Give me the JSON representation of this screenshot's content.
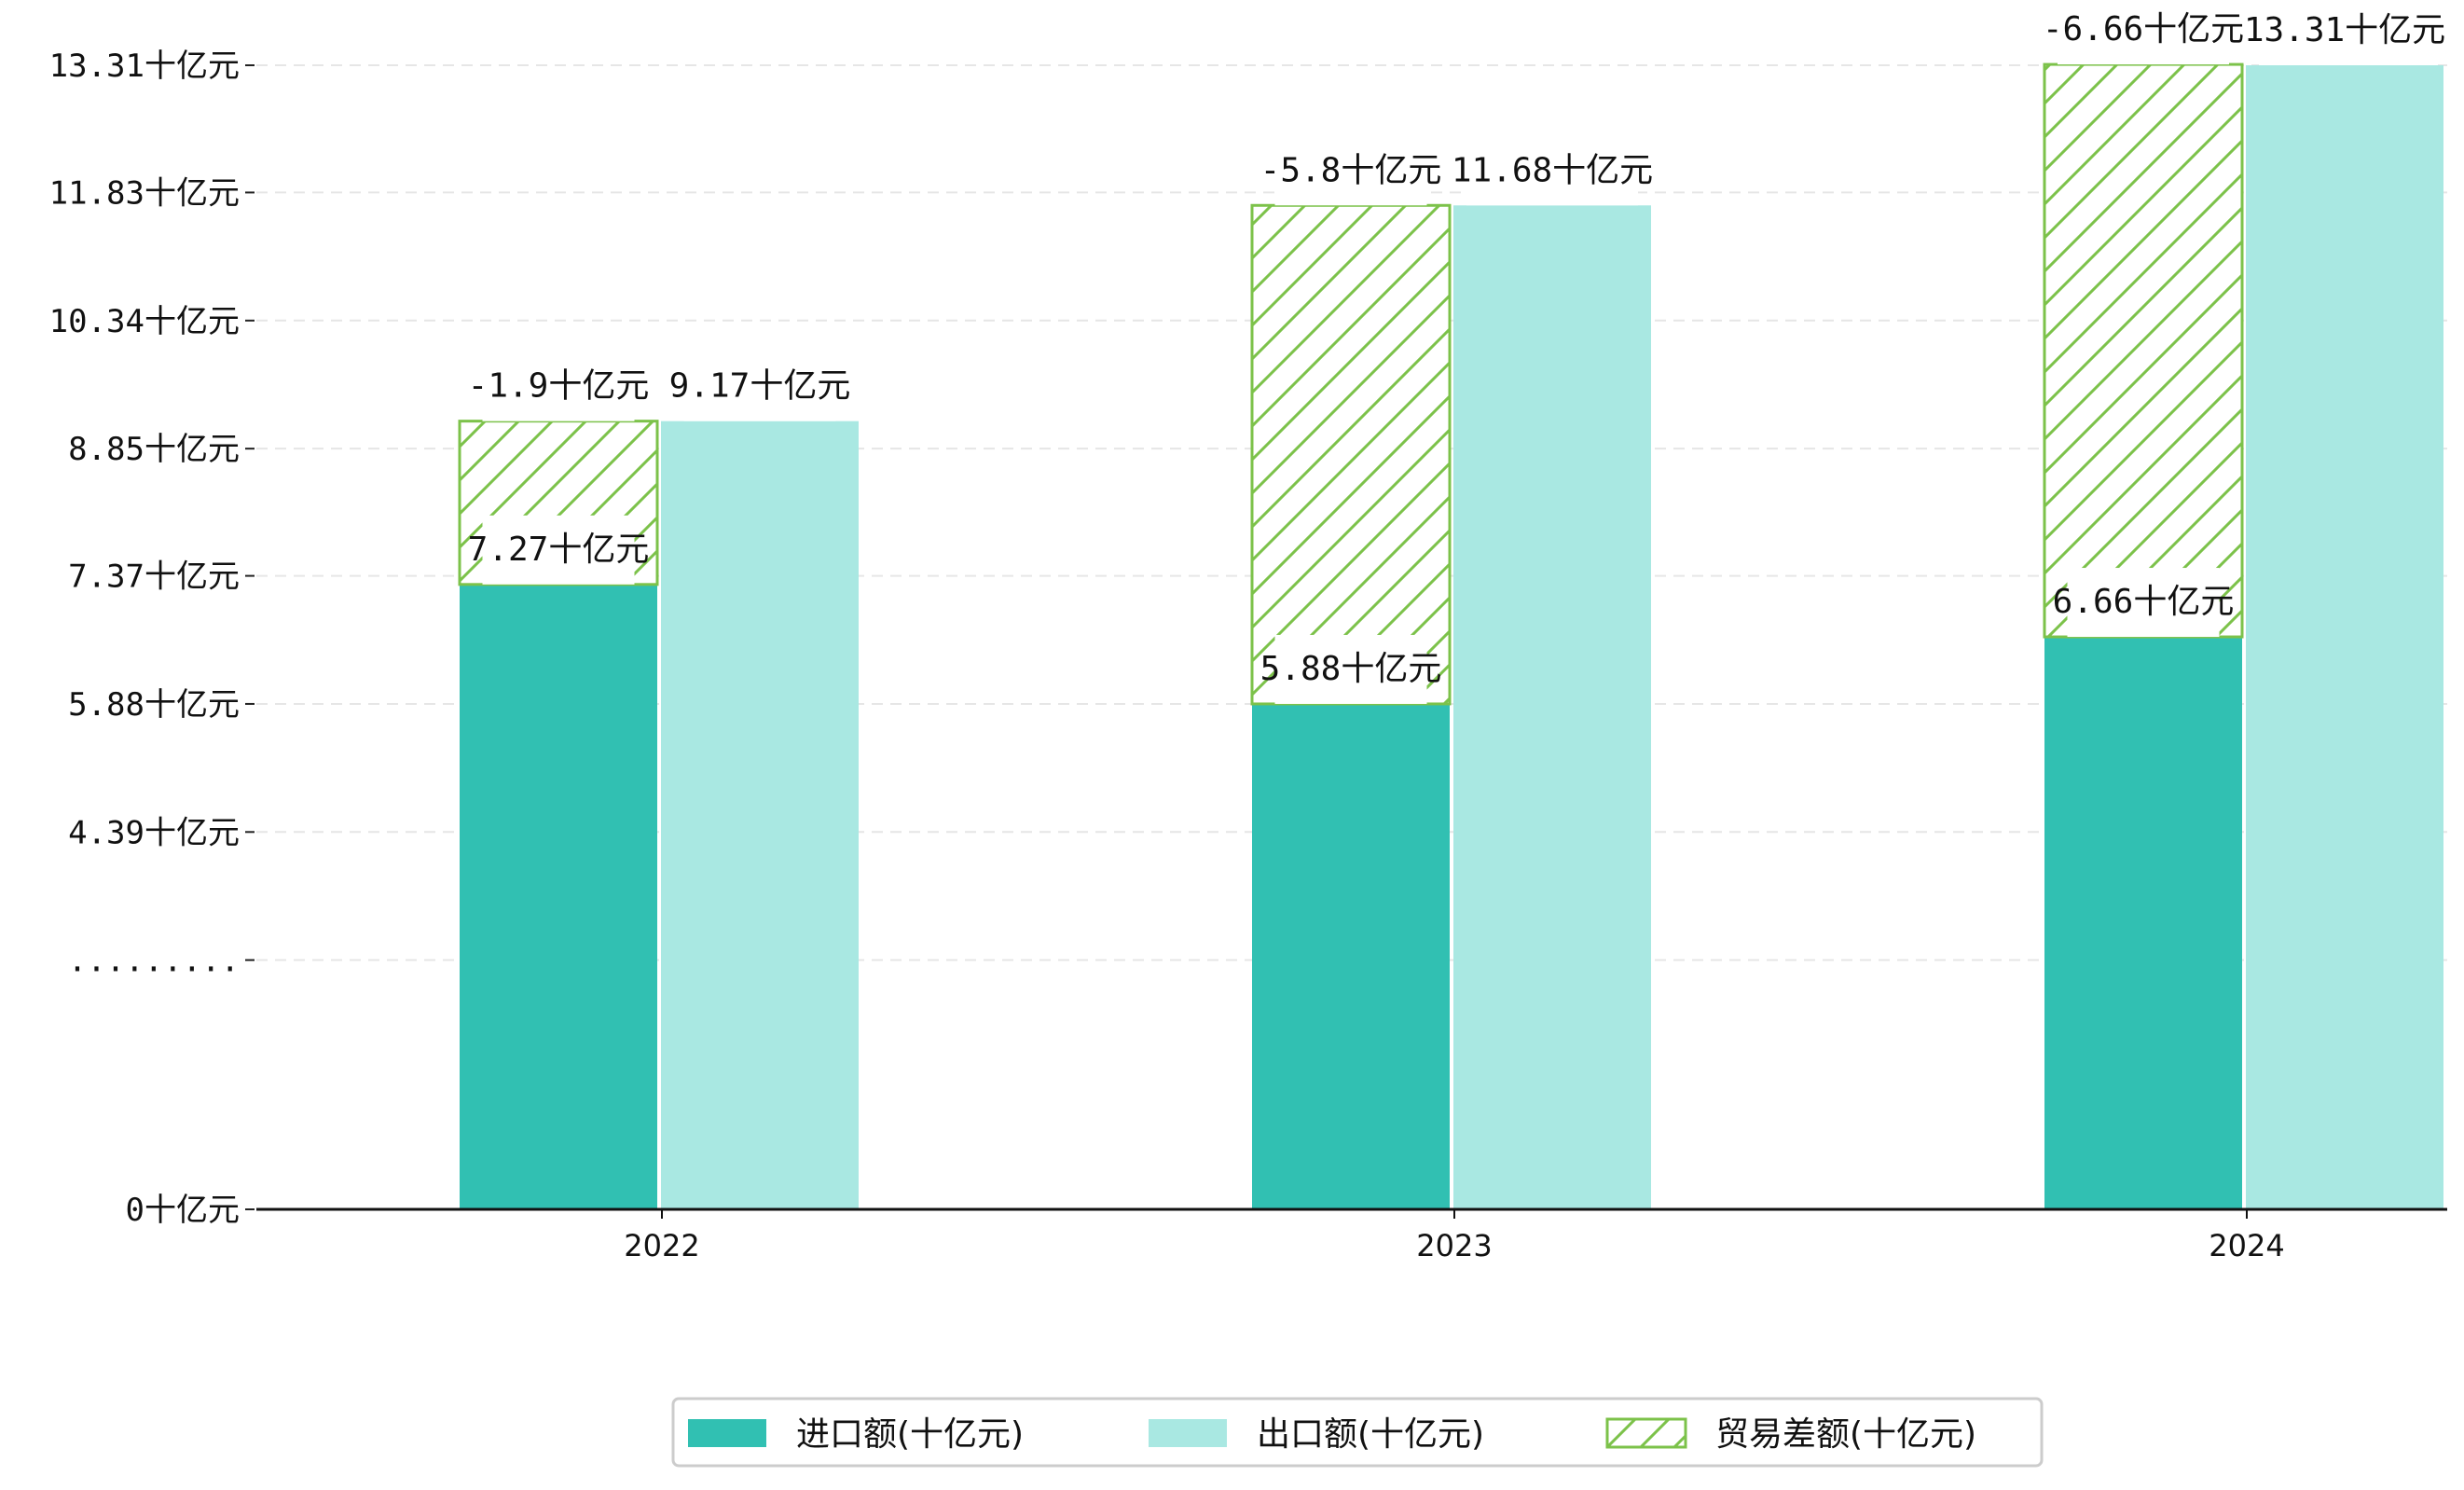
{
  "chart_data": {
    "type": "bar",
    "categories": [
      "2022",
      "2023",
      "2024"
    ],
    "unit": "十亿元",
    "series": [
      {
        "name": "进口额(十亿元)",
        "key": "import",
        "values": [
          7.27,
          5.88,
          6.66
        ],
        "labels": [
          "7.27十亿元",
          "5.88十亿元",
          "6.66十亿元"
        ],
        "color": "#31c0b2"
      },
      {
        "name": "出口额(十亿元)",
        "key": "export",
        "values": [
          9.17,
          11.68,
          13.31
        ],
        "labels": [
          "9.17十亿元",
          "11.68十亿元",
          "13.31十亿元"
        ],
        "color": "#a9e8e2"
      },
      {
        "name": "贸易差额(十亿元)",
        "key": "balance",
        "values": [
          -1.9,
          -5.8,
          -6.66
        ],
        "labels": [
          "-1.9十亿元",
          "-5.8十亿元",
          "-6.66十亿元"
        ],
        "color": "#7cc24a",
        "pattern": "hatch"
      }
    ],
    "y_ticks": [
      {
        "value": 0,
        "label": "0十亿元"
      },
      {
        "value": 2.9,
        "label": "........."
      },
      {
        "value": 4.39,
        "label": "4.39十亿元"
      },
      {
        "value": 5.88,
        "label": "5.88十亿元"
      },
      {
        "value": 7.37,
        "label": "7.37十亿元"
      },
      {
        "value": 8.85,
        "label": "8.85十亿元"
      },
      {
        "value": 10.34,
        "label": "10.34十亿元"
      },
      {
        "value": 11.83,
        "label": "11.83十亿元"
      },
      {
        "value": 13.31,
        "label": "13.31十亿元"
      }
    ],
    "ylim": [
      0,
      13.31
    ],
    "axis_break": true,
    "grid": true,
    "legend_position": "bottom-center",
    "title": "",
    "xlabel": "",
    "ylabel": ""
  }
}
